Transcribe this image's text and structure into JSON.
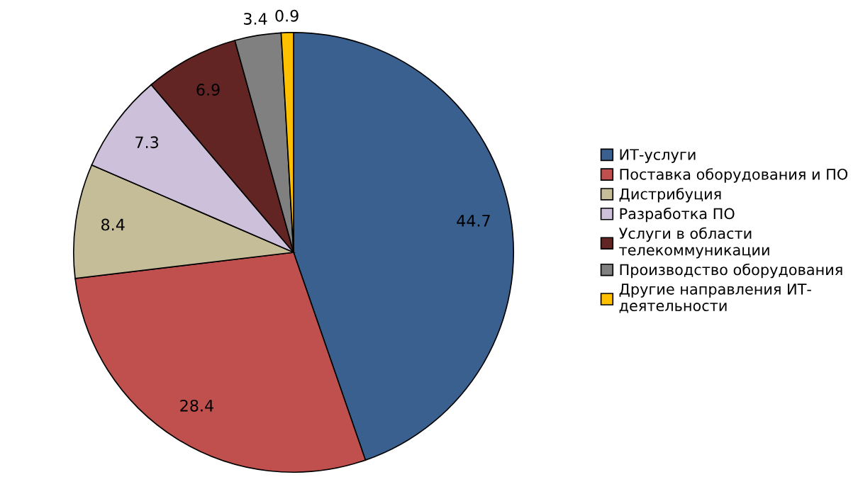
{
  "chart_data": {
    "type": "pie",
    "categories": [
      "ИТ-услуги",
      "Поставка оборудования и ПО",
      "Дистрибуция",
      "Разработка ПО",
      "Услуги в области\nтелекоммуникации",
      "Производство оборудования",
      "Другие направления ИТ-\nдеятельности"
    ],
    "values": [
      44.7,
      28.4,
      8.4,
      7.3,
      6.9,
      3.4,
      0.9
    ],
    "colors": [
      "#3a6090",
      "#c0504d",
      "#c4bd97",
      "#ccc0da",
      "#632523",
      "#808080",
      "#ffc000"
    ],
    "data_labels": true,
    "legend": "right"
  }
}
